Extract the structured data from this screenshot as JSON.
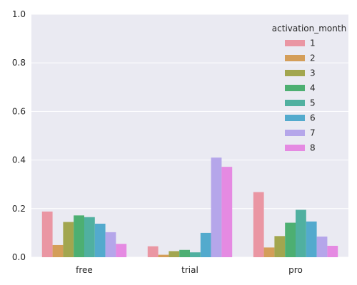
{
  "chart_data": {
    "type": "bar",
    "categories": [
      "free",
      "trial",
      "pro"
    ],
    "series": [
      {
        "name": "1",
        "color": "#ea96a3",
        "values": [
          0.188,
          0.045,
          0.268
        ]
      },
      {
        "name": "2",
        "color": "#d49e59",
        "values": [
          0.05,
          0.01,
          0.04
        ]
      },
      {
        "name": "3",
        "color": "#a2a64f",
        "values": [
          0.145,
          0.025,
          0.087
        ]
      },
      {
        "name": "4",
        "color": "#4daf72",
        "values": [
          0.172,
          0.03,
          0.142
        ]
      },
      {
        "name": "5",
        "color": "#50b0a0",
        "values": [
          0.165,
          0.02,
          0.195
        ]
      },
      {
        "name": "6",
        "color": "#53aacd",
        "values": [
          0.138,
          0.1,
          0.147
        ]
      },
      {
        "name": "7",
        "color": "#b5a6ea",
        "values": [
          0.103,
          0.41,
          0.085
        ]
      },
      {
        "name": "8",
        "color": "#e58ae2",
        "values": [
          0.055,
          0.372,
          0.047
        ]
      }
    ],
    "ylim": [
      0,
      1.0
    ],
    "yticks": [
      "0.0",
      "0.2",
      "0.4",
      "0.6",
      "0.8",
      "1.0"
    ],
    "legend_title": "activation_month",
    "legend_position": "top-right",
    "grid": true,
    "title": "",
    "xlabel": "",
    "ylabel": ""
  }
}
